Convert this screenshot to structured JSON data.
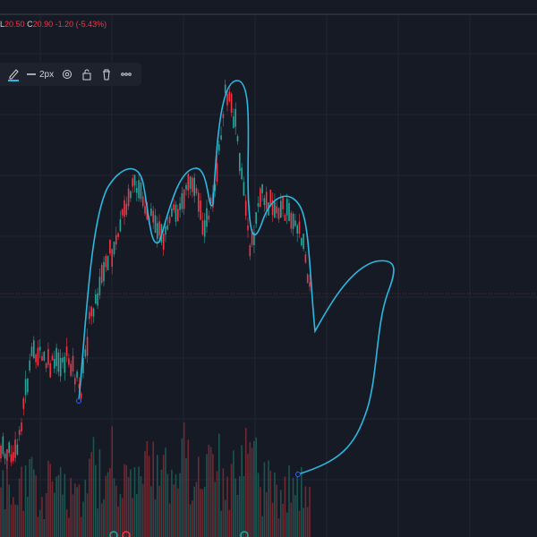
{
  "legend": {
    "items": [
      {
        "key": "L",
        "value": "20.50"
      },
      {
        "key": "C",
        "value": "20.90"
      }
    ],
    "change": "-1.20 (-5.43%)"
  },
  "toolbar": {
    "width_label": "2px"
  }
}
